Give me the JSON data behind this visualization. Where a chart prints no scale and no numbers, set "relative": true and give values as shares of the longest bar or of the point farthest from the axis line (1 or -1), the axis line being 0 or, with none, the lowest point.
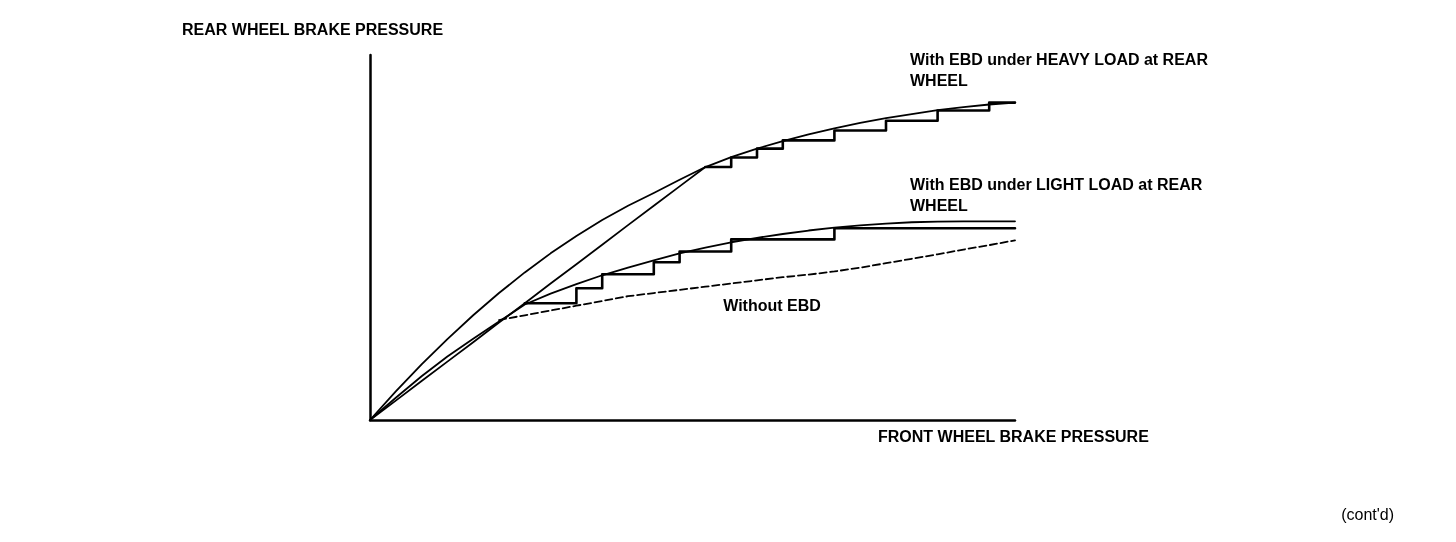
{
  "chart_data": {
    "type": "line",
    "relative": true,
    "xlabel": "FRONT WHEEL BRAKE PRESSURE",
    "ylabel": "REAR WHEEL BRAKE PRESSURE",
    "annotations": [
      "(cont'd)"
    ],
    "marker": "none",
    "line_style": "solid",
    "categories": [
      null,
      null,
      null,
      null,
      null,
      null,
      null,
      null,
      null,
      null,
      null,
      null,
      null,
      null,
      null,
      null,
      null,
      null,
      null,
      null,
      null,
      null,
      null,
      null,
      null,
      null
    ],
    "series": [
      {
        "color": "#000000",
        "values": [
          0,
          0.09,
          0.175,
          0.255,
          0.33,
          0.4,
          0.465,
          0.525,
          0.58,
          0.63,
          0.675,
          0.715,
          0.757,
          0.797,
          0.828,
          0.855,
          0.879,
          0.9,
          0.919,
          0.936,
          0.951,
          0.964,
          0.976,
          0.986,
          0.994,
          1
        ]
      },
      {
        "color": "#000000",
        "values": [
          0,
          0.061,
          0.123,
          0.184,
          0.245,
          0.307,
          0.368,
          0.43,
          0.491,
          0.552,
          0.614,
          0.675,
          0.736,
          0.797,
          null,
          null,
          null,
          null,
          null,
          null,
          null,
          null,
          null,
          null,
          null,
          null
        ]
      },
      {
        "name": "With EBD under HEAVY LOAD at REAR WHEEL",
        "type": "step",
        "color": "#000000",
        "values": [
          null,
          null,
          null,
          null,
          null,
          null,
          null,
          null,
          null,
          null,
          null,
          null,
          null,
          0.797,
          0.827,
          0.855,
          0.881,
          0.881,
          0.912,
          0.912,
          0.943,
          0.943,
          0.975,
          0.975,
          1,
          1
        ]
      },
      {
        "color": "#000000",
        "values": [
          0,
          0.07,
          0.138,
          0.2,
          0.256,
          0.31,
          0.364,
          0.398,
          0.428,
          0.456,
          0.48,
          0.503,
          0.525,
          0.543,
          0.56,
          0.574,
          0.586,
          0.597,
          0.606,
          0.613,
          0.619,
          0.623,
          0.625,
          0.626,
          0.626,
          0.626
        ]
      },
      {
        "name": "With EBD under LIGHT LOAD at REAR WHEEL",
        "type": "step",
        "color": "#000000",
        "values": [
          null,
          null,
          null,
          null,
          null,
          null,
          0.368,
          0.368,
          0.415,
          0.459,
          0.459,
          0.497,
          0.531,
          0.531,
          0.569,
          0.569,
          0.569,
          0.569,
          0.604,
          0.604,
          0.604,
          0.604,
          0.604,
          0.604,
          0.604,
          0.604
        ]
      },
      {
        "name": "Without EBD",
        "color": "#000000",
        "line_style": "dashed",
        "values": [
          null,
          null,
          null,
          null,
          null,
          0.315,
          0.33,
          0.345,
          0.36,
          0.375,
          0.39,
          0.4,
          0.41,
          0.42,
          0.43,
          0.44,
          0.45,
          0.458,
          0.468,
          0.48,
          0.494,
          0.508,
          0.522,
          0.537,
          0.551,
          0.566
        ]
      }
    ]
  }
}
